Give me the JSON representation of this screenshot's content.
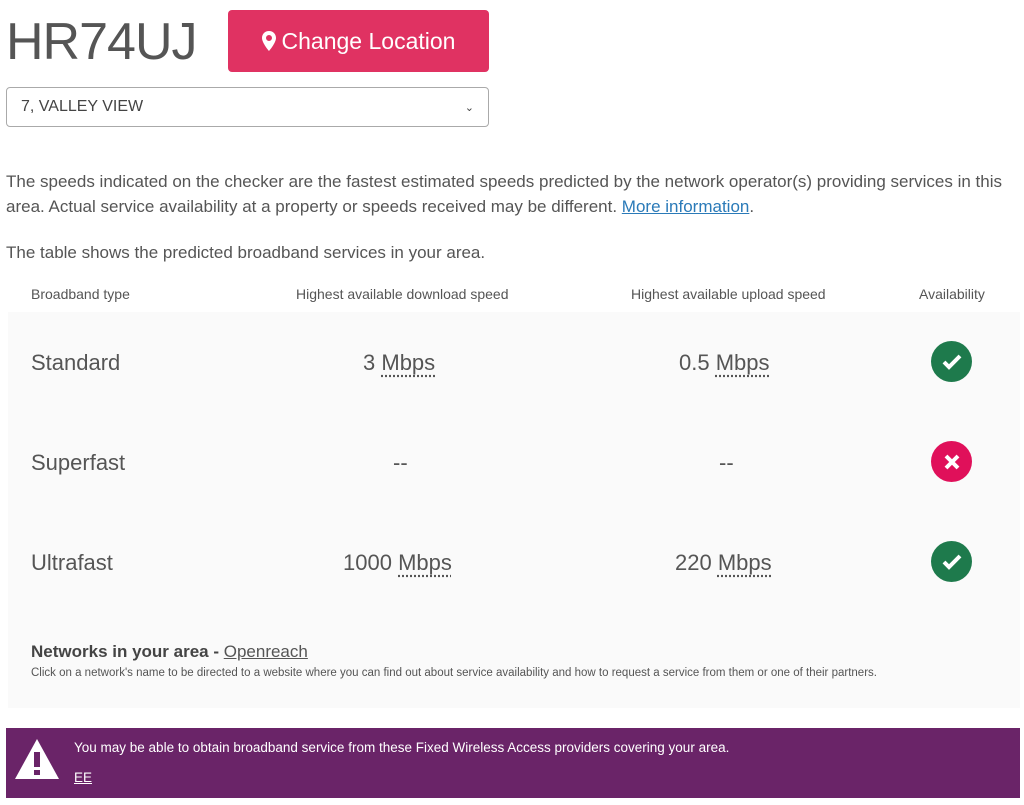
{
  "postcode": "HR74UJ",
  "change_location_label": "Change Location",
  "address_select": {
    "selected": "7, VALLEY VIEW"
  },
  "disclaimer": {
    "text": "The speeds indicated on the checker are the fastest estimated speeds predicted by the network operator(s) providing services in this area. Actual service availability at a property or speeds received may be different. ",
    "link": "More information",
    "end": "."
  },
  "table_intro": "The table shows the predicted broadband services in your area.",
  "headers": [
    "Broadband type",
    "Highest available download speed",
    "Highest available upload speed",
    "Availability"
  ],
  "rows": [
    {
      "type": "Standard",
      "down": "3",
      "down_unit": "Mbps",
      "up": "0.5",
      "up_unit": "Mbps",
      "available": true
    },
    {
      "type": "Superfast",
      "down": "--",
      "down_unit": "",
      "up": "--",
      "up_unit": "",
      "available": false
    },
    {
      "type": "Ultrafast",
      "down": "1000",
      "down_unit": "Mbps",
      "up": "220",
      "up_unit": "Mbps",
      "available": true
    }
  ],
  "networks": {
    "label": "Networks in your area - ",
    "link": "Openreach",
    "desc": "Click on a network's name to be directed to a website where you can find out about service availability and how to request a service from them or one of their partners."
  },
  "fwa": {
    "text": "You may be able to obtain broadband service from these Fixed Wireless Access providers covering your area.",
    "provider": "EE"
  },
  "colors": {
    "accent": "#e03262",
    "available": "#1e7a4c",
    "unavailable": "#e0105a",
    "banner": "#6a2468"
  }
}
